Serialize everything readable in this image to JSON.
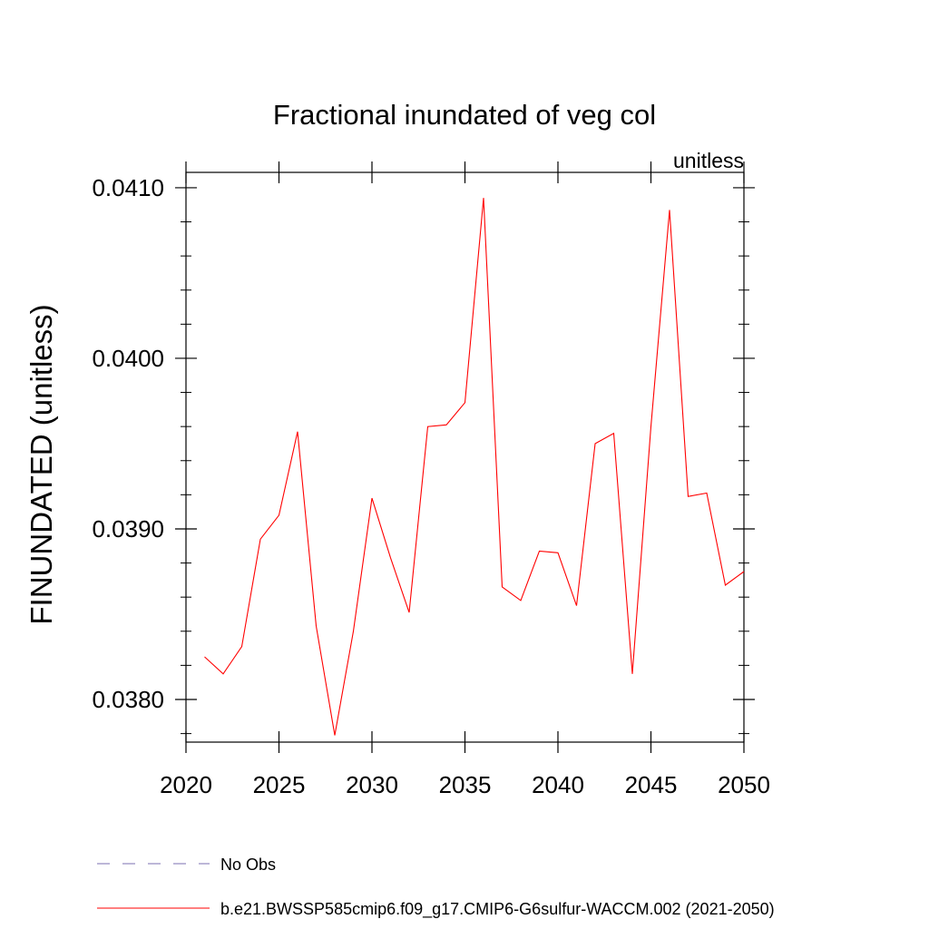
{
  "chart_data": {
    "type": "line",
    "title": "Fractional inundated of veg col",
    "units_label": "unitless",
    "ylabel": "FINUNDATED  (unitless)",
    "xlabel": "",
    "xlim": [
      2020,
      2050
    ],
    "ylim": [
      0.03775,
      0.04109
    ],
    "x_ticks": [
      2020,
      2025,
      2030,
      2035,
      2040,
      2045,
      2050
    ],
    "x_tick_labels": [
      "2020",
      "2025",
      "2030",
      "2035",
      "2040",
      "2045",
      "2050"
    ],
    "y_ticks": [
      0.038,
      0.039,
      0.04,
      0.041
    ],
    "y_tick_labels": [
      "0.0380",
      "0.0390",
      "0.0400",
      "0.0410"
    ],
    "y_minor_step": 0.0002,
    "x_minor_step": 1,
    "grid": false,
    "legend_position": "bottom",
    "legend": [
      {
        "label": "No Obs",
        "color": "#7b6fb0",
        "dash": true
      },
      {
        "label": "b.e21.BWSSP585cmip6.f09_g17.CMIP6-G6sulfur-WACCM.002 (2021-2050)",
        "color": "#ff0000",
        "dash": false
      }
    ],
    "series": [
      {
        "color": "#ff0000",
        "x": [
          2021,
          2022,
          2023,
          2024,
          2025,
          2026,
          2027,
          2028,
          2029,
          2030,
          2031,
          2032,
          2033,
          2034,
          2035,
          2036,
          2037,
          2038,
          2039,
          2040,
          2041,
          2042,
          2043,
          2044,
          2045,
          2046,
          2047,
          2048,
          2049,
          2050
        ],
        "values": [
          0.03825,
          0.03815,
          0.03831,
          0.03894,
          0.03908,
          0.03957,
          0.03843,
          0.03779,
          0.0384,
          0.03918,
          0.03883,
          0.03851,
          0.0396,
          0.03961,
          0.03974,
          0.04094,
          0.03866,
          0.03858,
          0.03887,
          0.03886,
          0.03855,
          0.0395,
          0.03956,
          0.03815,
          0.0396,
          0.04087,
          0.03919,
          0.03921,
          0.03867,
          0.03875
        ]
      }
    ]
  }
}
